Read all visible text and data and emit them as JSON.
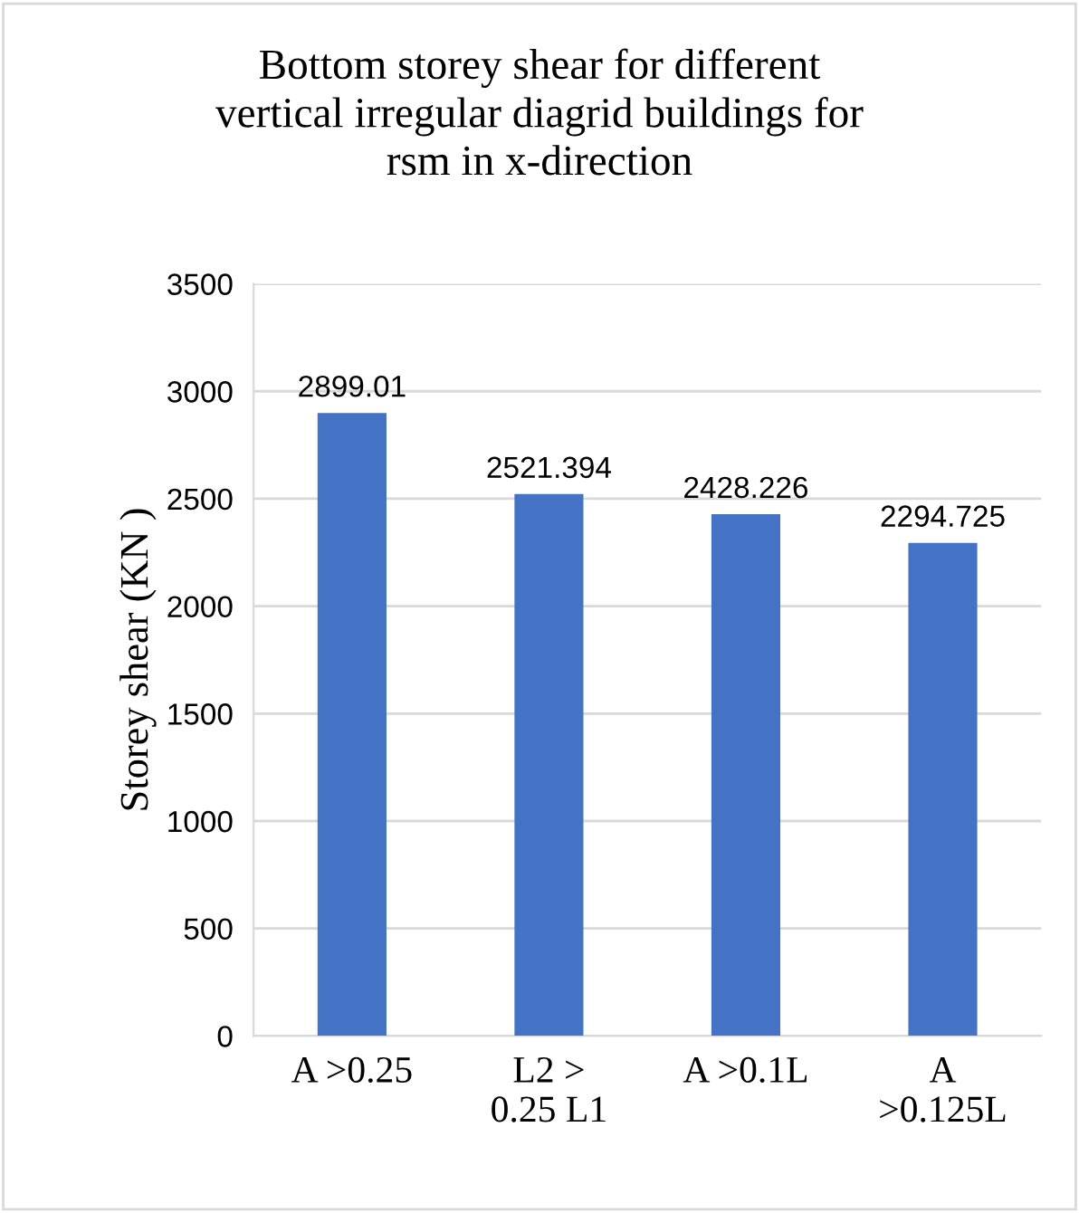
{
  "chart_data": {
    "type": "bar",
    "title": "Bottom storey shear for different\nvertical irregular diagrid buildings for\nrsm in x-direction",
    "ylabel": "Storey shear (KN )",
    "categories": [
      "A >0.25",
      "L2 >\n0.25 L1",
      "A >0.1L",
      "A\n>0.125L"
    ],
    "values": [
      2899.01,
      2521.394,
      2428.226,
      2294.725
    ],
    "color": "#4472c4",
    "ylim": [
      0,
      3500
    ],
    "yticks": [
      0,
      500,
      1000,
      1500,
      2000,
      2500,
      3000,
      3500
    ],
    "grid": "y",
    "data_labels": true
  }
}
